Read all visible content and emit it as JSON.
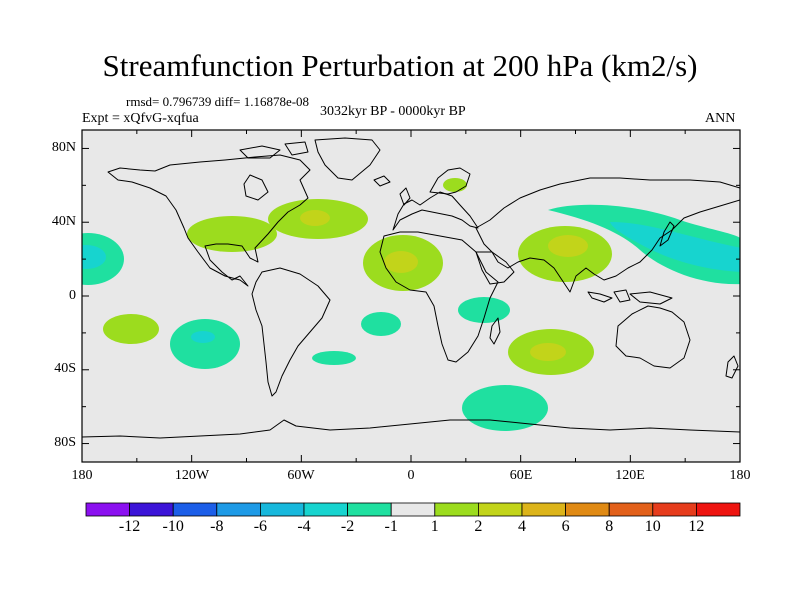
{
  "title": "Streamfunction Perturbation at 200 hPa (km2/s)",
  "stats": "rmsd= 0.796739 diff= 1.16878e-08",
  "experiment": "Expt = xQfvG-xqfua",
  "period": "3032kyr BP - 0000kyr BP",
  "season": "ANN",
  "y_axis": {
    "ticks": [
      "80N",
      "40N",
      "0",
      "40S",
      "80S"
    ]
  },
  "x_axis": {
    "ticks": [
      "180",
      "120W",
      "60W",
      "0",
      "60E",
      "120E",
      "180"
    ]
  },
  "colorbar": {
    "labels": [
      "-12",
      "-10",
      "-8",
      "-6",
      "-4",
      "-2",
      "-1",
      "1",
      "2",
      "4",
      "6",
      "8",
      "10",
      "12"
    ],
    "colors": [
      "#8b10f0",
      "#3c14d8",
      "#1c5ee8",
      "#1e9ae6",
      "#17b8dc",
      "#17d4cf",
      "#1fe0a0",
      "#e8e8e8",
      "#9cdc1e",
      "#c2d41a",
      "#dcb41a",
      "#e08a14",
      "#e2601a",
      "#e63c1c",
      "#ee1410"
    ]
  },
  "colors": {
    "background": "#e8e8e8",
    "frame": "#000000"
  },
  "chart_data": {
    "type": "contour-map",
    "projection": "cylindrical-equidistant",
    "lon_range": [
      -180,
      180
    ],
    "lat_range": [
      -90,
      90
    ],
    "variable": "streamfunction perturbation",
    "units": "km2/s",
    "level_hpa": 200,
    "contour_levels": [
      -12,
      -10,
      -8,
      -6,
      -4,
      -2,
      -1,
      1,
      2,
      4,
      6,
      8,
      10,
      12
    ],
    "anomalies": [
      {
        "name": "north-pacific-east",
        "lon": -170,
        "lat": 20,
        "value": -3
      },
      {
        "name": "north-atlantic",
        "lon": -55,
        "lat": 40,
        "value": 3
      },
      {
        "name": "gulf-of-mexico",
        "lon": -90,
        "lat": 28,
        "value": 2
      },
      {
        "name": "north-africa",
        "lon": -5,
        "lat": 20,
        "value": 3
      },
      {
        "name": "scandinavia",
        "lon": 24,
        "lat": 62,
        "value": 2
      },
      {
        "name": "east-africa",
        "lon": 42,
        "lat": -8,
        "value": -2
      },
      {
        "name": "india",
        "lon": 85,
        "lat": 26,
        "value": 3
      },
      {
        "name": "south-indian-ocean",
        "lon": 80,
        "lat": -30,
        "value": 3
      },
      {
        "name": "japan-north-pacific",
        "lon": 150,
        "lat": 25,
        "value": -3
      },
      {
        "name": "south-pacific-west",
        "lon": -165,
        "lat": -18,
        "value": 2
      },
      {
        "name": "south-pacific-east",
        "lon": -125,
        "lat": -25,
        "value": -2
      },
      {
        "name": "south-atlantic",
        "lon": -15,
        "lat": -15,
        "value": -2
      },
      {
        "name": "south-atlantic-lower",
        "lon": -40,
        "lat": -35,
        "value": -2
      },
      {
        "name": "southern-ocean",
        "lon": 50,
        "lat": -65,
        "value": -2
      }
    ]
  }
}
